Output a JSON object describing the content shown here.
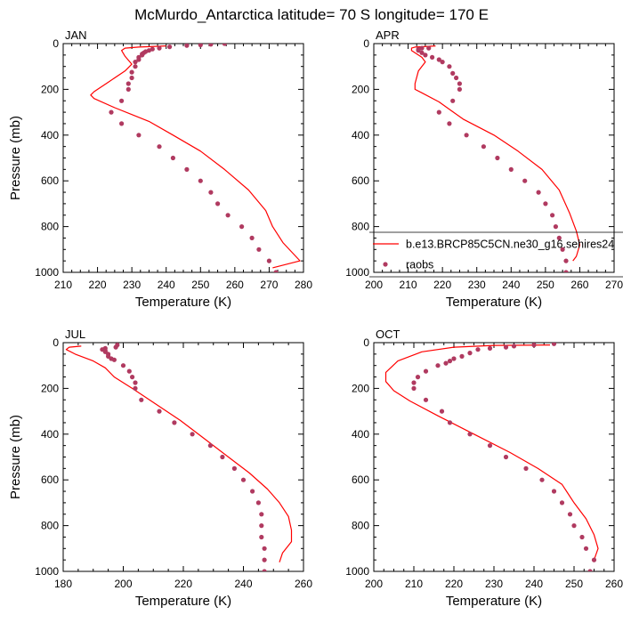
{
  "figure": {
    "title": "McMurdo_Antarctica  latitude= 70 S longitude= 170 E"
  },
  "chart_data": [
    {
      "type": "line",
      "panel_label": "JAN",
      "xlabel": "Temperature (K)",
      "ylabel": "Pressure (mb)",
      "xlim": [
        210,
        280
      ],
      "ylim": [
        1000,
        0
      ],
      "xticks": [
        210,
        220,
        230,
        240,
        250,
        260,
        270,
        280
      ],
      "yticks": [
        0,
        200,
        400,
        600,
        800,
        1000
      ],
      "series": [
        {
          "kind": "line",
          "color": "#ff0000",
          "points": [
            [
              240,
              10
            ],
            [
              232,
              15
            ],
            [
              228,
              20
            ],
            [
              227,
              30
            ],
            [
              228,
              55
            ],
            [
              230,
              90
            ],
            [
              228,
              120
            ],
            [
              223,
              170
            ],
            [
              219,
              210
            ],
            [
              218,
              225
            ],
            [
              219,
              240
            ],
            [
              225,
              280
            ],
            [
              235,
              340
            ],
            [
              242,
              400
            ],
            [
              250,
              470
            ],
            [
              257,
              550
            ],
            [
              264,
              640
            ],
            [
              269,
              730
            ],
            [
              271,
              800
            ],
            [
              274,
              870
            ],
            [
              279,
              950
            ],
            [
              271,
              980
            ]
          ]
        },
        {
          "kind": "scatter",
          "color": "#b03a60",
          "points": [
            [
              257,
              0
            ],
            [
              253,
              3
            ],
            [
              250,
              6
            ],
            [
              246,
              8
            ],
            [
              241,
              14
            ],
            [
              238,
              20
            ],
            [
              236,
              24
            ],
            [
              235,
              30
            ],
            [
              234,
              35
            ],
            [
              233.5,
              40
            ],
            [
              233,
              45
            ],
            [
              233,
              50
            ],
            [
              232,
              60
            ],
            [
              232,
              70
            ],
            [
              231,
              80
            ],
            [
              231,
              100
            ],
            [
              230,
              125
            ],
            [
              230,
              150
            ],
            [
              229,
              175
            ],
            [
              229,
              200
            ],
            [
              227,
              250
            ],
            [
              224,
              300
            ],
            [
              227,
              350
            ],
            [
              232,
              400
            ],
            [
              238,
              450
            ],
            [
              242,
              500
            ],
            [
              246,
              550
            ],
            [
              250,
              600
            ],
            [
              253,
              650
            ],
            [
              255,
              700
            ],
            [
              258,
              750
            ],
            [
              262,
              800
            ],
            [
              265,
              850
            ],
            [
              267,
              900
            ],
            [
              270,
              950
            ],
            [
              272,
              1000
            ]
          ]
        }
      ]
    },
    {
      "type": "line",
      "panel_label": "APR",
      "xlabel": "Temperature (K)",
      "ylabel": "",
      "xlim": [
        200,
        270
      ],
      "ylim": [
        1000,
        0
      ],
      "xticks": [
        200,
        210,
        220,
        230,
        240,
        250,
        260,
        270
      ],
      "yticks": [
        0,
        200,
        400,
        600,
        800,
        1000
      ],
      "series": [
        {
          "kind": "line",
          "color": "#ff0000",
          "points": [
            [
              218,
              10
            ],
            [
              212,
              15
            ],
            [
              211,
              20
            ],
            [
              211,
              30
            ],
            [
              214,
              60
            ],
            [
              215,
              80
            ],
            [
              213,
              120
            ],
            [
              212,
              175
            ],
            [
              212,
              200
            ],
            [
              214,
              215
            ],
            [
              219,
              255
            ],
            [
              226,
              330
            ],
            [
              235,
              400
            ],
            [
              242,
              470
            ],
            [
              249,
              550
            ],
            [
              254,
              640
            ],
            [
              257,
              740
            ],
            [
              259,
              820
            ],
            [
              260,
              880
            ],
            [
              259,
              930
            ],
            [
              258,
              950
            ]
          ]
        },
        {
          "kind": "scatter",
          "color": "#b03a60",
          "points": [
            [
              216,
              20
            ],
            [
              214,
              20
            ],
            [
              213,
              25
            ],
            [
              213,
              30
            ],
            [
              214,
              40
            ],
            [
              215,
              50
            ],
            [
              217,
              60
            ],
            [
              219,
              70
            ],
            [
              220,
              80
            ],
            [
              222,
              100
            ],
            [
              223,
              130
            ],
            [
              224,
              150
            ],
            [
              225,
              175
            ],
            [
              225,
              200
            ],
            [
              223,
              250
            ],
            [
              219,
              300
            ],
            [
              222,
              350
            ],
            [
              227,
              400
            ],
            [
              232,
              450
            ],
            [
              236,
              500
            ],
            [
              240,
              550
            ],
            [
              244,
              600
            ],
            [
              248,
              650
            ],
            [
              250,
              700
            ],
            [
              252,
              750
            ],
            [
              253,
              800
            ],
            [
              254,
              850
            ],
            [
              255,
              900
            ],
            [
              256,
              950
            ],
            [
              256,
              1000
            ]
          ]
        }
      ],
      "legend": {
        "placement": "bottom-right",
        "entries": [
          {
            "label": "b.e13.BRCP85C5CN.ne30_g16.sehires24",
            "marker": "line",
            "color": "#ff0000"
          },
          {
            "label": "raobs",
            "marker": "dot",
            "color": "#b03a60"
          }
        ]
      }
    },
    {
      "type": "line",
      "panel_label": "JUL",
      "xlabel": "Temperature (K)",
      "ylabel": "Pressure (mb)",
      "xlim": [
        180,
        260
      ],
      "ylim": [
        1000,
        0
      ],
      "xticks": [
        180,
        200,
        220,
        240,
        260
      ],
      "yticks": [
        0,
        200,
        400,
        600,
        800,
        1000
      ],
      "series": [
        {
          "kind": "line",
          "color": "#ff0000",
          "points": [
            [
              186,
              15
            ],
            [
              182,
              20
            ],
            [
              181,
              30
            ],
            [
              184,
              50
            ],
            [
              190,
              80
            ],
            [
              194,
              110
            ],
            [
              197,
              150
            ],
            [
              203,
              200
            ],
            [
              211,
              270
            ],
            [
              219,
              340
            ],
            [
              227,
              420
            ],
            [
              235,
              500
            ],
            [
              242,
              570
            ],
            [
              248,
              640
            ],
            [
              252,
              700
            ],
            [
              255,
              760
            ],
            [
              256,
              820
            ],
            [
              256,
              870
            ],
            [
              253,
              920
            ],
            [
              252,
              960
            ]
          ]
        },
        {
          "kind": "scatter",
          "color": "#b03a60",
          "points": [
            [
              198,
              10
            ],
            [
              197.5,
              20
            ],
            [
              194,
              25
            ],
            [
              193,
              30
            ],
            [
              194,
              35
            ],
            [
              194,
              40
            ],
            [
              195,
              50
            ],
            [
              195,
              60
            ],
            [
              196,
              70
            ],
            [
              197,
              75
            ],
            [
              200,
              100
            ],
            [
              202,
              125
            ],
            [
              203,
              150
            ],
            [
              204,
              175
            ],
            [
              204,
              200
            ],
            [
              206,
              250
            ],
            [
              212,
              300
            ],
            [
              217,
              350
            ],
            [
              223,
              400
            ],
            [
              229,
              450
            ],
            [
              233,
              500
            ],
            [
              237,
              550
            ],
            [
              240,
              600
            ],
            [
              243,
              650
            ],
            [
              245,
              700
            ],
            [
              246,
              750
            ],
            [
              246,
              800
            ],
            [
              246,
              850
            ],
            [
              247,
              900
            ],
            [
              247,
              950
            ],
            [
              247,
              1000
            ]
          ]
        }
      ]
    },
    {
      "type": "line",
      "panel_label": "OCT",
      "xlabel": "Temperature (K)",
      "ylabel": "",
      "xlim": [
        200,
        260
      ],
      "ylim": [
        1000,
        0
      ],
      "xticks": [
        200,
        210,
        220,
        230,
        240,
        250,
        260
      ],
      "yticks": [
        0,
        200,
        400,
        600,
        800,
        1000
      ],
      "series": [
        {
          "kind": "line",
          "color": "#ff0000",
          "points": [
            [
              244,
              10
            ],
            [
              230,
              12
            ],
            [
              220,
              20
            ],
            [
              212,
              40
            ],
            [
              206,
              80
            ],
            [
              203,
              130
            ],
            [
              203,
              170
            ],
            [
              205,
              210
            ],
            [
              209,
              255
            ],
            [
              216,
              320
            ],
            [
              225,
              400
            ],
            [
              234,
              480
            ],
            [
              241,
              550
            ],
            [
              247,
              620
            ],
            [
              250,
              700
            ],
            [
              253,
              770
            ],
            [
              255,
              840
            ],
            [
              256,
              900
            ],
            [
              255,
              950
            ]
          ]
        },
        {
          "kind": "scatter",
          "color": "#b03a60",
          "points": [
            [
              245,
              5
            ],
            [
              240,
              10
            ],
            [
              235,
              15
            ],
            [
              233,
              20
            ],
            [
              229,
              25
            ],
            [
              226,
              30
            ],
            [
              224,
              45
            ],
            [
              222,
              60
            ],
            [
              220,
              70
            ],
            [
              219,
              80
            ],
            [
              218,
              90
            ],
            [
              216,
              100
            ],
            [
              213,
              125
            ],
            [
              211,
              150
            ],
            [
              210,
              175
            ],
            [
              210,
              200
            ],
            [
              213,
              250
            ],
            [
              217,
              300
            ],
            [
              219,
              350
            ],
            [
              224,
              400
            ],
            [
              229,
              450
            ],
            [
              233,
              500
            ],
            [
              238,
              550
            ],
            [
              242,
              600
            ],
            [
              245,
              650
            ],
            [
              247,
              700
            ],
            [
              249,
              750
            ],
            [
              250,
              800
            ],
            [
              252,
              850
            ],
            [
              253,
              900
            ],
            [
              255,
              950
            ],
            [
              254,
              1000
            ]
          ]
        }
      ]
    }
  ]
}
